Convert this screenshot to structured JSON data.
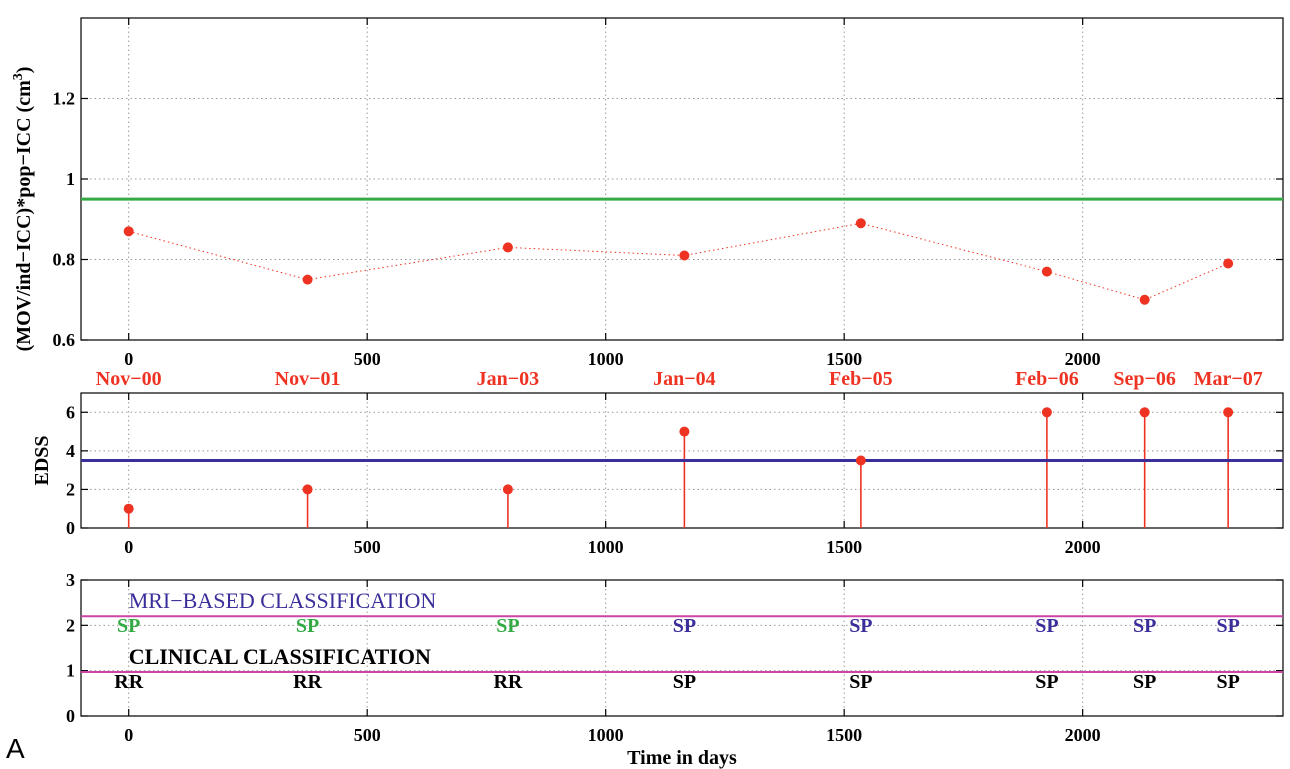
{
  "panel_letter": "A",
  "colors": {
    "red": "#ee3322",
    "green": "#33aa44",
    "blue": "#3a2e9a",
    "magenta": "#cc44aa",
    "black": "#000000",
    "grid": "#999999"
  },
  "chart_data": [
    {
      "type": "line",
      "xlim": [
        -100,
        2420
      ],
      "ylim": [
        0.6,
        1.4
      ],
      "xticks": [
        0,
        500,
        1000,
        1500,
        2000
      ],
      "yticks": [
        0.6,
        0.8,
        1,
        1.2
      ],
      "ytick_labels": [
        "0.6",
        "0.8",
        "1",
        "1.2"
      ],
      "ylabel_main": "(MOV/ind−ICC)*pop−ICC (cm",
      "ylabel_sup": "3",
      "ylabel_end": ")",
      "grid": true,
      "series": [
        {
          "x": [
            0,
            375,
            795,
            1165,
            1535,
            1925,
            2130,
            2305
          ],
          "values": [
            0.87,
            0.75,
            0.83,
            0.81,
            0.89,
            0.77,
            0.7,
            0.79
          ],
          "style": "markers-dotted-line",
          "color": "#ee3322"
        }
      ],
      "reference_line": {
        "y": 0.95,
        "color": "#33aa44"
      },
      "date_labels": [
        "Nov−00",
        "Nov−01",
        "Jan−03",
        "Jan−04",
        "Feb−05",
        "Feb−06",
        "Sep−06",
        "Mar−07"
      ]
    },
    {
      "type": "stem",
      "xlim": [
        -100,
        2420
      ],
      "ylim": [
        0,
        7
      ],
      "xticks": [
        0,
        500,
        1000,
        1500,
        2000
      ],
      "yticks": [
        0,
        2,
        4,
        6
      ],
      "ylabel": "EDSS",
      "grid": true,
      "series": [
        {
          "x": [
            0,
            375,
            795,
            1165,
            1535,
            1925,
            2130,
            2305
          ],
          "values": [
            1,
            2,
            2,
            5,
            3.5,
            6,
            6,
            6
          ],
          "color": "#ee3322"
        }
      ],
      "reference_line": {
        "y": 3.5,
        "color": "#3a2e9a"
      }
    },
    {
      "type": "annotation",
      "xlim": [
        -100,
        2420
      ],
      "ylim": [
        0,
        3
      ],
      "xticks": [
        0,
        500,
        1000,
        1500,
        2000
      ],
      "yticks": [
        0,
        1,
        2,
        3
      ],
      "xlabel": "Time in days",
      "grid": true,
      "reference_lines": [
        {
          "y": 2.2,
          "color": "#cc44aa"
        },
        {
          "y": 0.97,
          "color": "#cc44aa"
        }
      ],
      "mri_caption": "MRI−BASED CLASSIFICATION",
      "clinical_caption": "CLINICAL CLASSIFICATION",
      "x": [
        0,
        375,
        795,
        1165,
        1535,
        1925,
        2130,
        2305
      ],
      "mri_labels": [
        "SP",
        "SP",
        "SP",
        "SP",
        "SP",
        "SP",
        "SP",
        "SP"
      ],
      "mri_colors": [
        "#33aa44",
        "#33aa44",
        "#33aa44",
        "#3a2e9a",
        "#3a2e9a",
        "#3a2e9a",
        "#3a2e9a",
        "#3a2e9a"
      ],
      "clinical_labels": [
        "RR",
        "RR",
        "RR",
        "SP",
        "SP",
        "SP",
        "SP",
        "SP"
      ]
    }
  ]
}
